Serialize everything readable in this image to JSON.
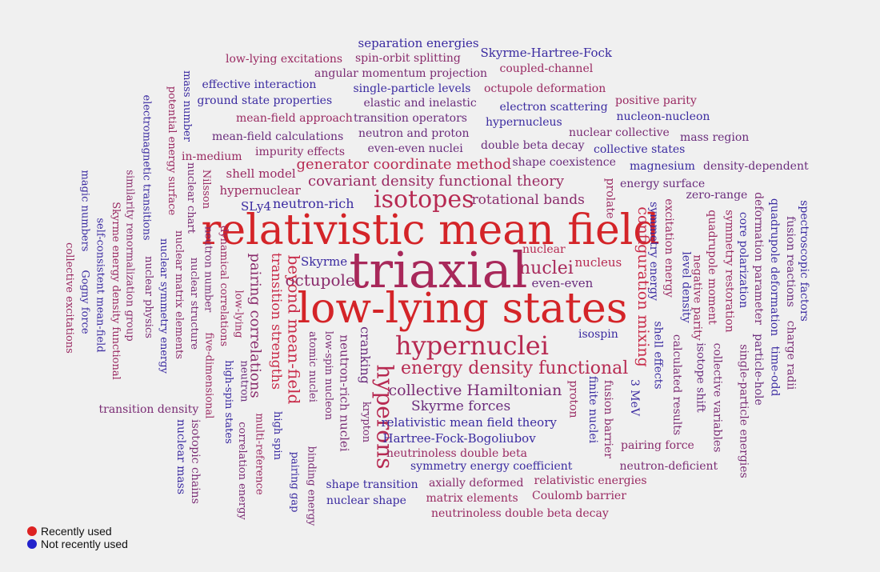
{
  "legend": {
    "recent_label": "Recently used",
    "not_recent_label": "Not recently used",
    "recent_color": "#dd2222",
    "not_recent_color": "#2222cc"
  },
  "words": [
    {
      "t": "relativistic mean field",
      "c": "#d42428"
    },
    {
      "t": "triaxial",
      "c": "#a8285a"
    },
    {
      "t": "low-lying states",
      "c": "#d42428"
    },
    {
      "t": "isotopes",
      "c": "#b72a52"
    },
    {
      "t": "hypernuclei",
      "c": "#b72a52"
    },
    {
      "t": "hyperons",
      "c": "#b72a52"
    },
    {
      "t": "energy density functional",
      "c": "#b72a52"
    },
    {
      "t": "covariant density functional theory",
      "c": "#9a2a62"
    },
    {
      "t": "generator coordinate method",
      "c": "#b72a52"
    },
    {
      "t": "octupole",
      "c": "#8a2c6c"
    },
    {
      "t": "nuclei",
      "c": "#a8285a"
    },
    {
      "t": "configuration mixing",
      "c": "#c82a48"
    },
    {
      "t": "beyond mean-field",
      "c": "#c82a48"
    },
    {
      "t": "transition strengths",
      "c": "#c82a48"
    },
    {
      "t": "pairing correlations",
      "c": "#8a2c6c"
    },
    {
      "t": "collective Hamiltonian",
      "c": "#7a2c74"
    },
    {
      "t": "rotational bands",
      "c": "#8a2c6c"
    },
    {
      "t": "neutron-rich",
      "c": "#3a2aa0"
    },
    {
      "t": "Skyrme forces",
      "c": "#6a2c7c"
    },
    {
      "t": "relativistic mean field theory",
      "c": "#3a2aa0"
    },
    {
      "t": "Hartree-Fock-Bogoliubov",
      "c": "#3a2aa0"
    },
    {
      "t": "even-even",
      "c": "#6a2c7c"
    },
    {
      "t": "nucleus",
      "c": "#b72a52"
    },
    {
      "t": "nuclear",
      "c": "#b72a52"
    },
    {
      "t": "Skyrme",
      "c": "#3a2aa0"
    },
    {
      "t": "cranking",
      "c": "#6a2c7c"
    },
    {
      "t": "neutron-rich nuclei",
      "c": "#7a2c74"
    },
    {
      "t": "shell model",
      "c": "#9a2a62"
    },
    {
      "t": "hypernuclear",
      "c": "#9a2a62"
    },
    {
      "t": "SLy4",
      "c": "#3a2aa0"
    },
    {
      "t": "isospin",
      "c": "#3a2aa0"
    },
    {
      "t": "separation energies",
      "c": "#3a2aa0"
    },
    {
      "t": "Skyrme-Hartree-Fock",
      "c": "#3a2aa0"
    },
    {
      "t": "low-lying excitations",
      "c": "#9a2a62"
    },
    {
      "t": "spin-orbit splitting",
      "c": "#8a2c6c"
    },
    {
      "t": "coupled-channel",
      "c": "#9a2a62"
    },
    {
      "t": "angular momentum projection",
      "c": "#7a2c74"
    },
    {
      "t": "effective interaction",
      "c": "#3a2aa0"
    },
    {
      "t": "single-particle levels",
      "c": "#3a2aa0"
    },
    {
      "t": "octupole deformation",
      "c": "#9a2a62"
    },
    {
      "t": "ground state properties",
      "c": "#3a2aa0"
    },
    {
      "t": "elastic and inelastic",
      "c": "#6a2c7c"
    },
    {
      "t": "positive parity",
      "c": "#9a2a62"
    },
    {
      "t": "electron scattering",
      "c": "#3a2aa0"
    },
    {
      "t": "mean-field approach",
      "c": "#9a2a62"
    },
    {
      "t": "transition operators",
      "c": "#6a2c7c"
    },
    {
      "t": "hypernucleus",
      "c": "#3a2aa0"
    },
    {
      "t": "nucleon-nucleon",
      "c": "#3a2aa0"
    },
    {
      "t": "neutron and proton",
      "c": "#6a2c7c"
    },
    {
      "t": "nuclear collective",
      "c": "#7a2c74"
    },
    {
      "t": "mass region",
      "c": "#6a2c7c"
    },
    {
      "t": "mean-field calculations",
      "c": "#6a2c7c"
    },
    {
      "t": "even-even nuclei",
      "c": "#6a2c7c"
    },
    {
      "t": "double beta decay",
      "c": "#6a2c7c"
    },
    {
      "t": "collective states",
      "c": "#3a2aa0"
    },
    {
      "t": "in-medium",
      "c": "#9a2a62"
    },
    {
      "t": "impurity effects",
      "c": "#8a2c6c"
    },
    {
      "t": "shape coexistence",
      "c": "#6a2c7c"
    },
    {
      "t": "magnesium",
      "c": "#3a2aa0"
    },
    {
      "t": "density-dependent",
      "c": "#6a2c7c"
    },
    {
      "t": "energy surface",
      "c": "#6a2c7c"
    },
    {
      "t": "zero-range",
      "c": "#6a2c7c"
    },
    {
      "t": "mass number",
      "c": "#3a2aa0"
    },
    {
      "t": "potential energy surface",
      "c": "#9a2a62"
    },
    {
      "t": "electromagnetic transitions",
      "c": "#3a2aa0"
    },
    {
      "t": "nuclear chart",
      "c": "#7a2c74"
    },
    {
      "t": "Nilsson",
      "c": "#9a2a62"
    },
    {
      "t": "magic numbers",
      "c": "#3a2aa0"
    },
    {
      "t": "similarity renormalization group",
      "c": "#8a2c6c"
    },
    {
      "t": "Skyrme energy density functional",
      "c": "#9a2a62"
    },
    {
      "t": "self-consistent mean-field",
      "c": "#3a2aa0"
    },
    {
      "t": "collective excitations",
      "c": "#9a2a62"
    },
    {
      "t": "Gogny force",
      "c": "#3a2aa0"
    },
    {
      "t": "nuclear physics",
      "c": "#7a2c74"
    },
    {
      "t": "nuclear symmetry energy",
      "c": "#3a2aa0"
    },
    {
      "t": "nuclear matrix elements",
      "c": "#8a2c6c"
    },
    {
      "t": "nuclear structure",
      "c": "#7a2c74"
    },
    {
      "t": "neutron number",
      "c": "#7a2c74"
    },
    {
      "t": "dynamical correlations",
      "c": "#9a2a62"
    },
    {
      "t": "five-dimensional",
      "c": "#9a2a62"
    },
    {
      "t": "low-lying",
      "c": "#9a2a62"
    },
    {
      "t": "high-spin states",
      "c": "#3a2aa0"
    },
    {
      "t": "neutron",
      "c": "#6a2c7c"
    },
    {
      "t": "correlation energy",
      "c": "#7a2c74"
    },
    {
      "t": "multi-reference",
      "c": "#9a2a62"
    },
    {
      "t": "high spin",
      "c": "#3a2aa0"
    },
    {
      "t": "atomic nuclei",
      "c": "#7a2c74"
    },
    {
      "t": "binding energy",
      "c": "#7a2c74"
    },
    {
      "t": "low-spin nucleon",
      "c": "#7a2c74"
    },
    {
      "t": "pairing gap",
      "c": "#3a2aa0"
    },
    {
      "t": "krypton",
      "c": "#7a2c74"
    },
    {
      "t": "proton",
      "c": "#9a2a62"
    },
    {
      "t": "finite nuclei",
      "c": "#3a2aa0"
    },
    {
      "t": "fusion barrier",
      "c": "#8a2c6c"
    },
    {
      "t": "3 MeV",
      "c": "#3a2aa0"
    },
    {
      "t": "prolate",
      "c": "#9a2a62"
    },
    {
      "t": "symmetry energy",
      "c": "#3a2aa0"
    },
    {
      "t": "shell effects",
      "c": "#3a2aa0"
    },
    {
      "t": "excitation energy",
      "c": "#9a2a62"
    },
    {
      "t": "calculated results",
      "c": "#7a2c74"
    },
    {
      "t": "level density",
      "c": "#3a2aa0"
    },
    {
      "t": "negative parity",
      "c": "#9a2a62"
    },
    {
      "t": "isotope shift",
      "c": "#6a2c7c"
    },
    {
      "t": "quadrupole moment",
      "c": "#9a2a62"
    },
    {
      "t": "collective variables",
      "c": "#7a2c74"
    },
    {
      "t": "symmetry restoration",
      "c": "#9a2a62"
    },
    {
      "t": "core polarization",
      "c": "#3a2aa0"
    },
    {
      "t": "single-particle energies",
      "c": "#7a2c74"
    },
    {
      "t": "deformation parameter",
      "c": "#7a2c74"
    },
    {
      "t": "particle-hole",
      "c": "#6a2c7c"
    },
    {
      "t": "quadrupole deformation",
      "c": "#3a2aa0"
    },
    {
      "t": "time-odd",
      "c": "#3a2aa0"
    },
    {
      "t": "spectroscopic factors",
      "c": "#3a2aa0"
    },
    {
      "t": "fusion reactions",
      "c": "#6a2c7c"
    },
    {
      "t": "charge radii",
      "c": "#7a2c74"
    },
    {
      "t": "transition density",
      "c": "#7a2c74"
    },
    {
      "t": "nuclear mass",
      "c": "#3a2aa0"
    },
    {
      "t": "isotopic chains",
      "c": "#7a2c74"
    },
    {
      "t": "neutrinoless double beta",
      "c": "#9a2a62"
    },
    {
      "t": "symmetry energy coefficient",
      "c": "#3a2aa0"
    },
    {
      "t": "pairing force",
      "c": "#8a2c6c"
    },
    {
      "t": "neutron-deficient",
      "c": "#7a2c74"
    },
    {
      "t": "shape transition",
      "c": "#3a2aa0"
    },
    {
      "t": "axially deformed",
      "c": "#8a2c6c"
    },
    {
      "t": "relativistic energies",
      "c": "#9a2a62"
    },
    {
      "t": "nuclear shape",
      "c": "#3a2aa0"
    },
    {
      "t": "matrix elements",
      "c": "#9a2a62"
    },
    {
      "t": "Coulomb barrier",
      "c": "#9a2a62"
    },
    {
      "t": "neutrinoless double beta decay",
      "c": "#9a2a62"
    }
  ]
}
